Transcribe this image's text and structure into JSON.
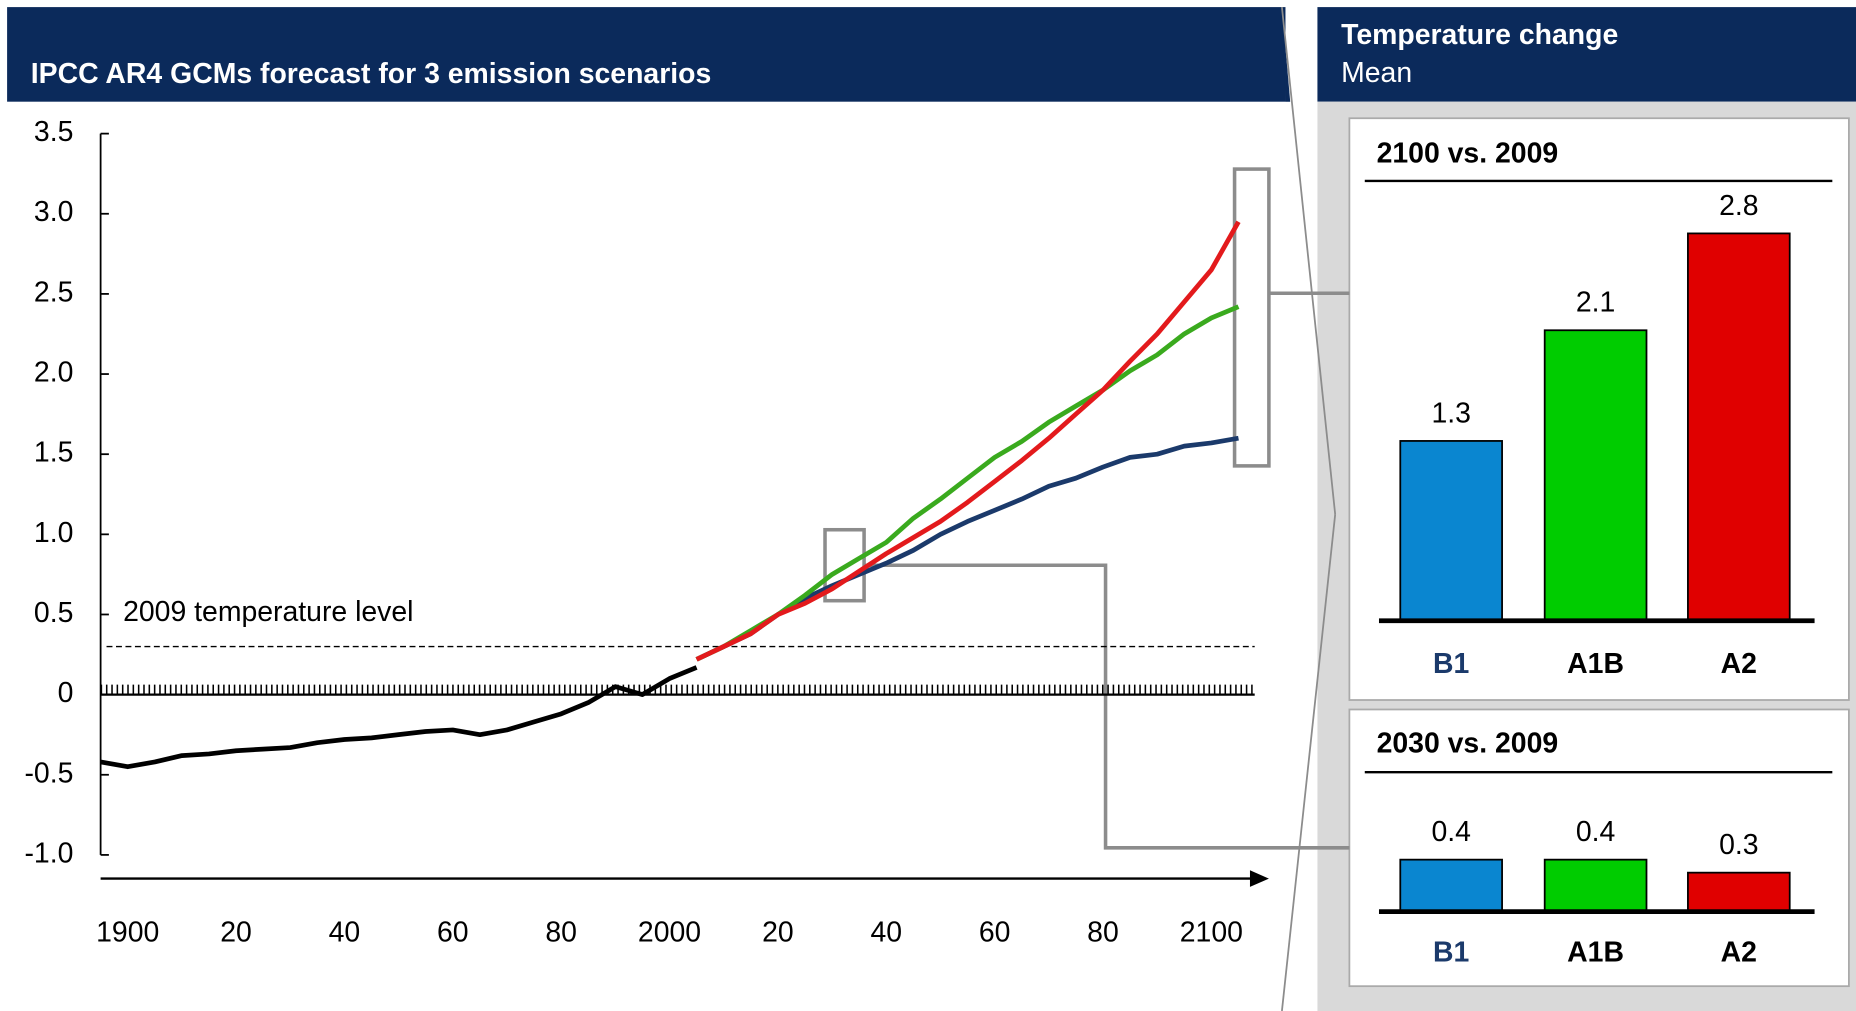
{
  "chart_data": [
    {
      "type": "line",
      "title": "IPCC AR4 GCMs forecast for 3 emission scenarios",
      "x": [
        1895,
        1900,
        1905,
        1910,
        1915,
        1920,
        1925,
        1930,
        1935,
        1940,
        1945,
        1950,
        1955,
        1960,
        1965,
        1970,
        1975,
        1980,
        1985,
        1990,
        1995,
        2000,
        2005,
        2010,
        2015,
        2020,
        2025,
        2030,
        2035,
        2040,
        2045,
        2050,
        2055,
        2060,
        2065,
        2070,
        2075,
        2080,
        2085,
        2090,
        2095,
        2100,
        2105
      ],
      "series": [
        {
          "color": "#000000",
          "values": [
            -0.42,
            -0.45,
            -0.42,
            -0.38,
            -0.37,
            -0.35,
            -0.34,
            -0.33,
            -0.3,
            -0.28,
            -0.27,
            -0.25,
            -0.23,
            -0.22,
            -0.25,
            -0.22,
            -0.17,
            -0.12,
            -0.05,
            0.05,
            0.0,
            0.1,
            0.17,
            null,
            null,
            null,
            null,
            null,
            null,
            null,
            null,
            null,
            null,
            null,
            null,
            null,
            null,
            null,
            null,
            null,
            null,
            null,
            null
          ]
        },
        {
          "color": "#1b3a6b",
          "values": [
            null,
            null,
            null,
            null,
            null,
            null,
            null,
            null,
            null,
            null,
            null,
            null,
            null,
            null,
            null,
            null,
            null,
            null,
            null,
            null,
            null,
            null,
            0.22,
            0.3,
            0.38,
            0.5,
            0.6,
            0.68,
            0.75,
            0.82,
            0.9,
            1.0,
            1.08,
            1.15,
            1.22,
            1.3,
            1.35,
            1.42,
            1.48,
            1.5,
            1.55,
            1.57,
            1.6
          ]
        },
        {
          "color": "#3aaa1e",
          "values": [
            null,
            null,
            null,
            null,
            null,
            null,
            null,
            null,
            null,
            null,
            null,
            null,
            null,
            null,
            null,
            null,
            null,
            null,
            null,
            null,
            null,
            null,
            0.22,
            0.3,
            0.4,
            0.5,
            0.62,
            0.75,
            0.85,
            0.95,
            1.1,
            1.22,
            1.35,
            1.48,
            1.58,
            1.7,
            1.8,
            1.9,
            2.02,
            2.12,
            2.25,
            2.35,
            2.42
          ]
        },
        {
          "color": "#e31a1c",
          "values": [
            null,
            null,
            null,
            null,
            null,
            null,
            null,
            null,
            null,
            null,
            null,
            null,
            null,
            null,
            null,
            null,
            null,
            null,
            null,
            null,
            null,
            null,
            0.22,
            0.3,
            0.38,
            0.5,
            0.57,
            0.66,
            0.77,
            0.88,
            0.98,
            1.08,
            1.2,
            1.33,
            1.46,
            1.6,
            1.75,
            1.9,
            2.08,
            2.25,
            2.45,
            2.65,
            2.95
          ]
        }
      ],
      "xlim": [
        1895,
        2108
      ],
      "xticks": [
        1900,
        {
          "value": 1920,
          "label": "20"
        },
        {
          "value": 1940,
          "label": "40"
        },
        {
          "value": 1960,
          "label": "60"
        },
        {
          "value": 1980,
          "label": "80"
        },
        2000,
        {
          "value": 2020,
          "label": "20"
        },
        {
          "value": 2040,
          "label": "40"
        },
        {
          "value": 2060,
          "label": "60"
        },
        {
          "value": 2080,
          "label": "80"
        },
        2100
      ],
      "ylim": [
        -1.0,
        3.5
      ],
      "yticks": [
        {
          "value": -1.0,
          "label": "-1.0"
        },
        -0.5,
        0,
        0.5,
        {
          "value": 1.0,
          "label": "1.0"
        },
        1.5,
        {
          "value": 2.0,
          "label": "2.0"
        },
        2.5,
        {
          "value": 3.0,
          "label": "3.0"
        },
        3.5
      ],
      "annotation": {
        "text": "2009 temperature level",
        "value": 0.3
      }
    },
    {
      "type": "bar",
      "title": "2100 vs. 2009",
      "categories": [
        "B1",
        "A1B",
        "A2"
      ],
      "values": [
        1.3,
        2.1,
        2.8
      ],
      "colors": [
        "#0a86d0",
        "#00cc00",
        "#e00000"
      ],
      "label_colors": [
        "#1b3a6b",
        "#000000",
        "#000000"
      ]
    },
    {
      "type": "bar",
      "title": "2030 vs. 2009",
      "categories": [
        "B1",
        "A1B",
        "A2"
      ],
      "values": [
        0.4,
        0.4,
        0.3
      ],
      "colors": [
        "#0a86d0",
        "#00cc00",
        "#e00000"
      ],
      "label_colors": [
        "#1b3a6b",
        "#000000",
        "#000000"
      ]
    }
  ],
  "panel": {
    "title": "Temperature change",
    "subtitle": "Mean"
  }
}
